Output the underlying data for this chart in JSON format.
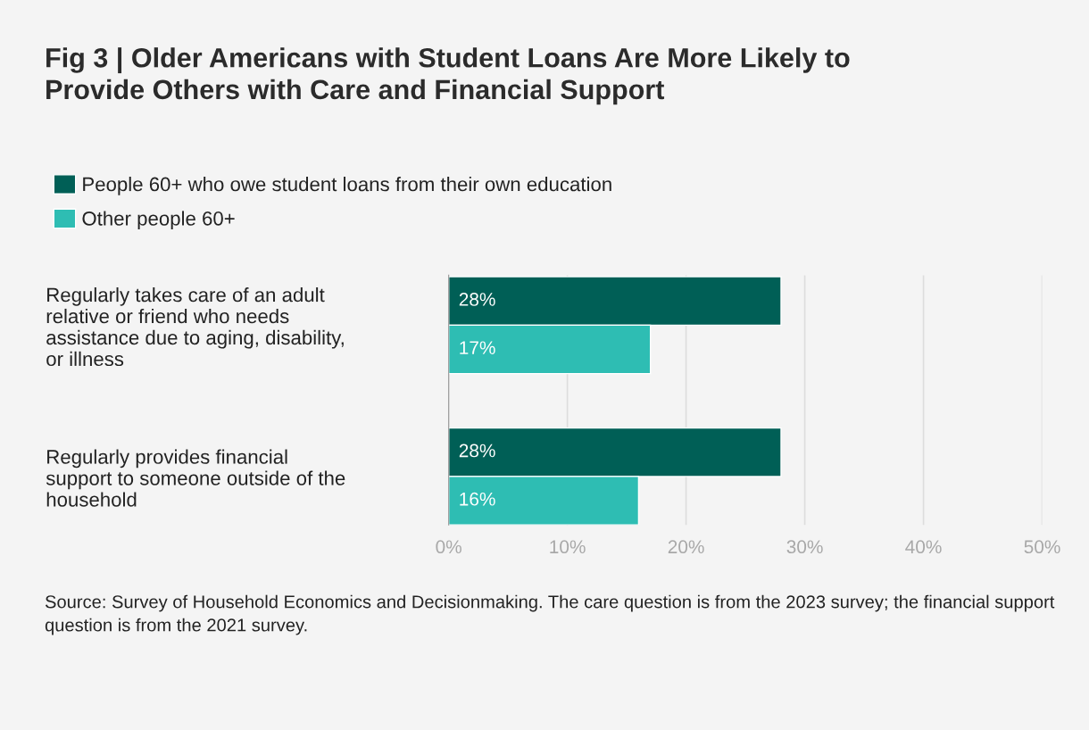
{
  "chart_data": {
    "type": "bar",
    "orientation": "horizontal",
    "title": "Fig 3 | Older Americans with Student Loans Are More Likely to\nProvide Others with Care and Financial Support",
    "categories": [
      "Regularly takes care of an adult\nrelative or friend who needs\nassistance due to aging, disability,\nor illness",
      "Regularly provides financial\nsupport to someone outside of the\nhousehold"
    ],
    "series": [
      {
        "name": "People 60+ who owe student loans from their own education",
        "color": "#005f56",
        "values": [
          28,
          28
        ],
        "value_labels": [
          "28%",
          "28%"
        ]
      },
      {
        "name": "Other people 60+",
        "color": "#2ebdb3",
        "values": [
          17,
          16
        ],
        "value_labels": [
          "17%",
          "16%"
        ]
      }
    ],
    "xlim": [
      0,
      50
    ],
    "xticks": [
      {
        "value": 0,
        "label": "0%"
      },
      {
        "value": 10,
        "label": "10%"
      },
      {
        "value": 20,
        "label": "20%"
      },
      {
        "value": 30,
        "label": "30%"
      },
      {
        "value": 40,
        "label": "40%"
      },
      {
        "value": 50,
        "label": "50%"
      }
    ],
    "grid": "x",
    "legend": "top left",
    "annotations": [
      "Source: Survey of Household Economics and Decisionmaking. The care question is from the 2023 survey; the financial support question is from the 2021 survey."
    ]
  }
}
